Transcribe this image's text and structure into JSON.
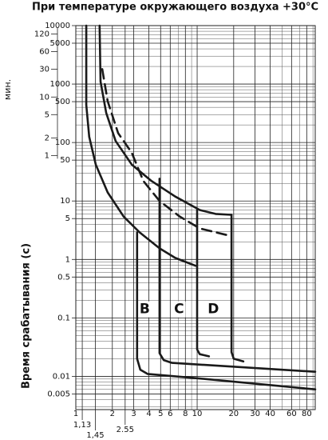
{
  "chart_data": {
    "type": "line",
    "title": "При температуре окружающего воздуха  +30°C",
    "y_label": "Время срабатывания (с)",
    "y2_label": "мин.",
    "log_x": true,
    "log_y": true,
    "grid": true,
    "xlim": [
      1,
      94
    ],
    "ylim": [
      0.0027,
      10000
    ],
    "y2lim": [
      4.5e-05,
      166.7
    ],
    "xticks": [
      1,
      {
        "value": 1.13,
        "label": "1,13"
      },
      {
        "value": 1.45,
        "label": "1,45"
      },
      2,
      {
        "value": 2.55,
        "label": "2.55"
      },
      3,
      4,
      5,
      6,
      8,
      10,
      20,
      30,
      40,
      60,
      80
    ],
    "xminor": [
      7,
      9,
      50,
      70,
      90
    ],
    "yticks": [
      0.005,
      0.01,
      0.1,
      0.5,
      1,
      5,
      10,
      50,
      100,
      500,
      1000,
      5000,
      10000
    ],
    "yminor": [
      0.003,
      0.004,
      0.006,
      0.007,
      0.008,
      0.009,
      0.02,
      0.03,
      0.04,
      0.05,
      0.06,
      0.07,
      0.08,
      0.09,
      0.2,
      0.3,
      0.4,
      0.6,
      0.7,
      0.8,
      0.9,
      2,
      3,
      4,
      6,
      7,
      8,
      9,
      20,
      30,
      40,
      60,
      70,
      80,
      90,
      200,
      300,
      400,
      600,
      700,
      800,
      900,
      2000,
      3000,
      4000,
      6000,
      7000,
      8000,
      9000
    ],
    "y2ticks": [
      1,
      2,
      5,
      10,
      30,
      60,
      120
    ],
    "color": "#1a1a1a",
    "series": [
      {
        "color": "#1a1a1a",
        "style": "solid",
        "x": [
          1.22,
          1.22,
          1.29,
          1.46,
          1.83,
          2.48,
          3.36,
          4.9,
          6.6,
          9.7
        ],
        "y": [
          10000,
          440,
          125,
          42,
          14,
          5.4,
          2.9,
          1.55,
          1.06,
          0.78
        ]
      },
      {
        "color": "#1a1a1a",
        "style": "solid",
        "x": [
          1.57,
          1.6,
          1.78,
          2.13,
          2.89,
          4.2,
          6.6,
          10.5,
          14.2,
          19.2
        ],
        "y": [
          10000,
          1100,
          320,
          106,
          42,
          22,
          11.9,
          7,
          6,
          5.8
        ]
      },
      {
        "color": "#1a1a1a",
        "style": "dashed",
        "x": [
          1.65,
          1.83,
          2.23,
          2.89,
          3.6,
          4.9,
          7.2,
          10.5,
          19.2
        ],
        "y": [
          1800,
          510,
          145,
          67,
          22,
          10,
          5.4,
          3.4,
          2.5
        ]
      },
      {
        "color": "#1a1a1a",
        "style": "solid",
        "x": [
          3.2,
          3.2,
          3.4,
          3.9,
          10,
          94
        ],
        "y": [
          2.9,
          0.02,
          0.013,
          0.011,
          0.0093,
          0.006
        ]
      },
      {
        "color": "#1a1a1a",
        "style": "solid",
        "x": [
          4.9,
          4.9,
          5.3,
          6.2,
          94
        ],
        "y": [
          24,
          0.025,
          0.019,
          0.017,
          0.012
        ]
      },
      {
        "color": "#1a1a1a",
        "style": "solid",
        "x": [
          10,
          10,
          10.5,
          12.5
        ],
        "y": [
          7,
          0.029,
          0.024,
          0.022
        ]
      },
      {
        "color": "#1a1a1a",
        "style": "solid",
        "x": [
          19.2,
          19.2,
          20,
          24
        ],
        "y": [
          5.8,
          0.026,
          0.02,
          0.018
        ]
      }
    ],
    "annotations": [
      {
        "text": "B",
        "x": 3.7,
        "y": 0.14
      },
      {
        "text": "C",
        "x": 7.1,
        "y": 0.14
      },
      {
        "text": "D",
        "x": 13.6,
        "y": 0.14
      }
    ]
  }
}
